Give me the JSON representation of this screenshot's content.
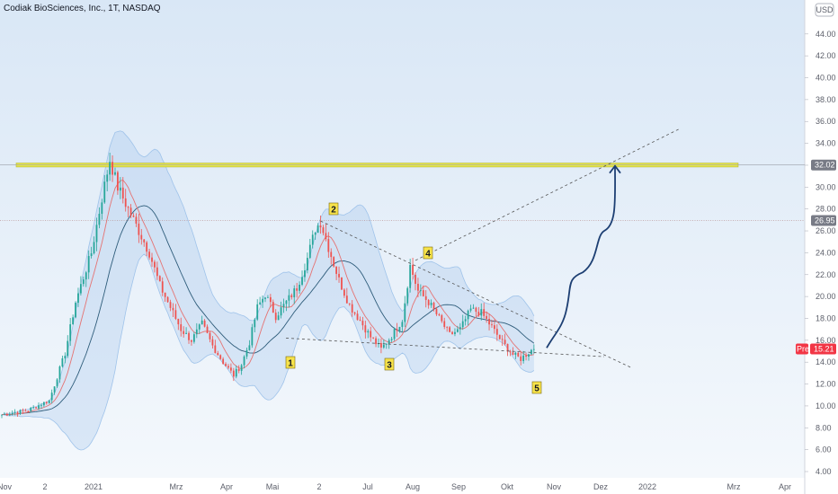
{
  "title": "Codiak BioSciences, Inc., 1T, NASDAQ",
  "currency": "USD",
  "colors": {
    "background_top": "#dce9f7",
    "background_bottom": "#f3f8fd",
    "up": "#26a69a",
    "down": "#ef5350",
    "resistance": "#e8e84a",
    "arrow": "#1d3f73",
    "price_tag": "#f23645",
    "level_tag": "#787b86"
  },
  "chart_data": {
    "type": "candlestick",
    "y_axis": {
      "ticks": [
        "4.00",
        "6.00",
        "8.00",
        "10.00",
        "12.00",
        "14.00",
        "16.00",
        "18.00",
        "20.00",
        "22.00",
        "24.00",
        "26.00",
        "28.00",
        "30.00",
        "32.00",
        "34.00",
        "36.00",
        "38.00",
        "40.00",
        "42.00",
        "44.00"
      ],
      "range": [
        3.3,
        45.8
      ]
    },
    "x_axis": {
      "ticks": [
        "Nov",
        "2",
        "2021",
        "Mrz",
        "Apr",
        "Mai",
        "2",
        "Jul",
        "Aug",
        "Sep",
        "Okt",
        "Nov",
        "Dez",
        "2022",
        "Mrz",
        "Apr"
      ]
    },
    "levels": [
      {
        "value": 32.02,
        "label": "32.02"
      },
      {
        "value": 26.95,
        "label": "26.95"
      }
    ],
    "current_price": {
      "value": 15.21,
      "label": "15.21",
      "prefix": "Prei"
    },
    "wave_labels": [
      "1",
      "2",
      "3",
      "4",
      "5"
    ],
    "series_anchors": [
      [
        0,
        9.2
      ],
      [
        10,
        9.6
      ],
      [
        18,
        10.5
      ],
      [
        24,
        14.8
      ],
      [
        28,
        19.5
      ],
      [
        34,
        24
      ],
      [
        38,
        29
      ],
      [
        41,
        32.5
      ],
      [
        44,
        30
      ],
      [
        48,
        28
      ],
      [
        52,
        26
      ],
      [
        56,
        24
      ],
      [
        60,
        21
      ],
      [
        64,
        19
      ],
      [
        68,
        17
      ],
      [
        72,
        16
      ],
      [
        76,
        17.5
      ],
      [
        80,
        15.5
      ],
      [
        84,
        14
      ],
      [
        88,
        12.8
      ],
      [
        91,
        13.8
      ],
      [
        94,
        15.8
      ],
      [
        97,
        19
      ],
      [
        100,
        20.2
      ],
      [
        104,
        18.2
      ],
      [
        108,
        19.5
      ],
      [
        112,
        20.8
      ],
      [
        116,
        23.5
      ],
      [
        119,
        26.2
      ],
      [
        121,
        26.8
      ],
      [
        124,
        24.5
      ],
      [
        128,
        21.5
      ],
      [
        132,
        19.2
      ],
      [
        136,
        17.8
      ],
      [
        140,
        16.3
      ],
      [
        144,
        15.2
      ],
      [
        148,
        16.4
      ],
      [
        152,
        17.9
      ],
      [
        155,
        22.8
      ],
      [
        158,
        20.5
      ],
      [
        162,
        19.5
      ],
      [
        166,
        18
      ],
      [
        170,
        16.5
      ],
      [
        174,
        17
      ],
      [
        178,
        18.8
      ],
      [
        182,
        18.5
      ],
      [
        186,
        17.2
      ],
      [
        190,
        15.8
      ],
      [
        194,
        14.7
      ],
      [
        197,
        14.3
      ],
      [
        200,
        14.9
      ],
      [
        202,
        15.3
      ]
    ]
  }
}
